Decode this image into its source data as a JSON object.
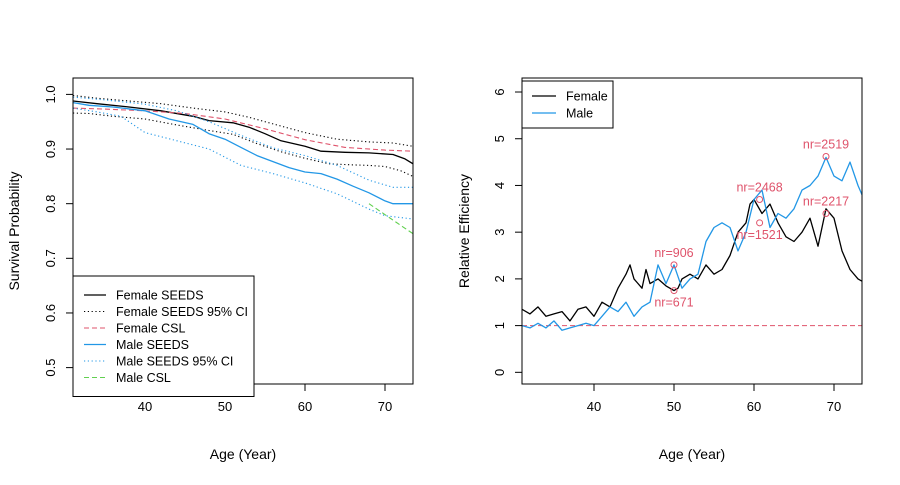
{
  "chart_data": [
    {
      "type": "line",
      "title": "",
      "xlabel": "Age (Year)",
      "ylabel": "Survival Probability",
      "xlim": [
        31,
        73.5
      ],
      "ylim": [
        0.47,
        1.03
      ],
      "xticks": [
        "40",
        "50",
        "60",
        "70"
      ],
      "yticks": [
        "0.5",
        "0.6",
        "0.7",
        "0.8",
        "0.9",
        "1.0"
      ],
      "grid": false,
      "legend_position": "bottom-left",
      "series": [
        {
          "name": "Female SEEDS",
          "color": "#000000",
          "style": "solid",
          "x": [
            31,
            34,
            38,
            42,
            46,
            48,
            51,
            53,
            55,
            57,
            60,
            62,
            65,
            68,
            71,
            72.5,
            73.5
          ],
          "y": [
            0.988,
            0.983,
            0.977,
            0.97,
            0.96,
            0.952,
            0.948,
            0.94,
            0.928,
            0.915,
            0.905,
            0.896,
            0.894,
            0.893,
            0.89,
            0.882,
            0.873
          ]
        },
        {
          "name": "Female SEEDS 95% CI",
          "color": "#000000",
          "style": "dotted",
          "x": [
            31,
            34,
            38,
            42,
            46,
            50,
            53,
            56,
            60,
            64,
            68,
            71,
            73.5
          ],
          "y": [
            0.998,
            0.993,
            0.988,
            0.983,
            0.975,
            0.968,
            0.958,
            0.946,
            0.93,
            0.918,
            0.913,
            0.911,
            0.905
          ]
        },
        {
          "name": "",
          "color": "#000000",
          "style": "dotted",
          "x": [
            31,
            33,
            36,
            40,
            44,
            48,
            51,
            54,
            57,
            60,
            63,
            66,
            68,
            70,
            72,
            73.5
          ],
          "y": [
            0.966,
            0.965,
            0.96,
            0.955,
            0.944,
            0.934,
            0.927,
            0.91,
            0.895,
            0.883,
            0.873,
            0.871,
            0.87,
            0.868,
            0.86,
            0.85
          ]
        },
        {
          "name": "Female CSL",
          "color": "#DF536B",
          "style": "dashed",
          "x": [
            31,
            35,
            40,
            45,
            50,
            55,
            60,
            65,
            70,
            73.5
          ],
          "y": [
            0.975,
            0.973,
            0.97,
            0.965,
            0.955,
            0.937,
            0.917,
            0.903,
            0.898,
            0.896
          ]
        },
        {
          "name": "Male SEEDS",
          "color": "#2297E6",
          "style": "solid",
          "x": [
            31,
            33,
            36,
            40,
            43,
            46,
            48,
            50,
            52,
            54,
            56,
            58,
            60,
            62,
            64,
            66,
            68,
            70,
            71,
            73.5
          ],
          "y": [
            0.985,
            0.98,
            0.977,
            0.97,
            0.955,
            0.945,
            0.928,
            0.918,
            0.903,
            0.888,
            0.877,
            0.866,
            0.858,
            0.855,
            0.845,
            0.832,
            0.82,
            0.805,
            0.8,
            0.8
          ]
        },
        {
          "name": "Male SEEDS 95% CI",
          "color": "#2297E6",
          "style": "dotted",
          "x": [
            31,
            35,
            40,
            44,
            48,
            52,
            56,
            60,
            64,
            68,
            71,
            73.5
          ],
          "y": [
            0.995,
            0.99,
            0.982,
            0.97,
            0.95,
            0.925,
            0.902,
            0.888,
            0.87,
            0.843,
            0.83,
            0.83
          ]
        },
        {
          "name": "",
          "color": "#2297E6",
          "style": "dotted",
          "x": [
            31,
            34,
            37,
            40,
            44,
            48,
            52,
            56,
            60,
            64,
            68,
            70,
            73.5
          ],
          "y": [
            0.975,
            0.968,
            0.96,
            0.93,
            0.915,
            0.9,
            0.87,
            0.855,
            0.838,
            0.818,
            0.79,
            0.778,
            0.772
          ]
        },
        {
          "name": "Male CSL",
          "color": "#61D04F",
          "style": "dashed",
          "x": [
            68,
            69.5,
            71,
            72.5,
            73.5
          ],
          "y": [
            0.8,
            0.785,
            0.77,
            0.755,
            0.745
          ]
        }
      ],
      "legend": [
        {
          "label": "Female SEEDS",
          "color": "#000000",
          "style": "solid"
        },
        {
          "label": "Female SEEDS 95% CI",
          "color": "#000000",
          "style": "dotted"
        },
        {
          "label": "Female CSL",
          "color": "#DF536B",
          "style": "dashed"
        },
        {
          "label": "Male SEEDS",
          "color": "#2297E6",
          "style": "solid"
        },
        {
          "label": "Male SEEDS 95% CI",
          "color": "#2297E6",
          "style": "dotted"
        },
        {
          "label": "Male CSL",
          "color": "#61D04F",
          "style": "dashed"
        }
      ]
    },
    {
      "type": "line",
      "title": "",
      "xlabel": "Age (Year)",
      "ylabel": "Relative Efficiency",
      "xlim": [
        31,
        73.5
      ],
      "ylim": [
        -0.25,
        6.3
      ],
      "xticks": [
        "40",
        "50",
        "60",
        "70"
      ],
      "yticks": [
        "0",
        "1",
        "2",
        "3",
        "4",
        "5",
        "6"
      ],
      "grid": false,
      "legend_position": "top-left",
      "reference_line": {
        "y": 1,
        "color": "#DF536B",
        "style": "dashed"
      },
      "series": [
        {
          "name": "Female",
          "color": "#000000",
          "style": "solid",
          "x": [
            31,
            32,
            33,
            34,
            35,
            36,
            37,
            38,
            39,
            40,
            41,
            42,
            43,
            44,
            44.5,
            45,
            46,
            46.5,
            47,
            48,
            49,
            50,
            50.5,
            51,
            52,
            53,
            54,
            55,
            56,
            57,
            58,
            59,
            59.5,
            60,
            61,
            62,
            63,
            64,
            65,
            66,
            67,
            68,
            69,
            70,
            71,
            72,
            73,
            73.5
          ],
          "y": [
            1.35,
            1.25,
            1.4,
            1.2,
            1.25,
            1.3,
            1.1,
            1.35,
            1.4,
            1.2,
            1.5,
            1.4,
            1.8,
            2.1,
            2.3,
            2.0,
            1.8,
            2.2,
            1.9,
            2.0,
            1.85,
            1.75,
            1.8,
            2.0,
            2.1,
            2.0,
            2.3,
            2.1,
            2.2,
            2.5,
            3.0,
            3.2,
            3.6,
            3.7,
            3.4,
            3.6,
            3.2,
            2.9,
            2.8,
            3.0,
            3.3,
            2.7,
            3.5,
            3.3,
            2.6,
            2.2,
            2.0,
            1.95
          ]
        },
        {
          "name": "Male",
          "color": "#2297E6",
          "style": "solid",
          "x": [
            31,
            32,
            33,
            34,
            35,
            36,
            37,
            38,
            39,
            40,
            41,
            42,
            43,
            44,
            45,
            46,
            47,
            48,
            49,
            50,
            51,
            52,
            53,
            54,
            55,
            56,
            57,
            58,
            59,
            60,
            61,
            62,
            63,
            64,
            65,
            66,
            67,
            68,
            69,
            70,
            71,
            72,
            73,
            73.5
          ],
          "y": [
            1.0,
            0.95,
            1.05,
            0.95,
            1.1,
            0.9,
            0.95,
            1.0,
            1.05,
            1.0,
            1.2,
            1.4,
            1.3,
            1.5,
            1.2,
            1.4,
            1.5,
            2.3,
            1.9,
            2.3,
            1.8,
            2.0,
            2.1,
            2.8,
            3.1,
            3.2,
            3.1,
            2.6,
            3.0,
            3.7,
            3.9,
            3.1,
            3.4,
            3.3,
            3.5,
            3.9,
            4.0,
            4.2,
            4.6,
            4.2,
            4.1,
            4.5,
            4.0,
            3.8
          ]
        }
      ],
      "legend": [
        {
          "label": "Female",
          "color": "#000000",
          "style": "solid"
        },
        {
          "label": "Male",
          "color": "#2297E6",
          "style": "solid"
        }
      ],
      "annotations": [
        {
          "text": "nr=906",
          "x": 50,
          "y": 2.3,
          "label_pos": "above",
          "color": "#DF536B"
        },
        {
          "text": "nr=671",
          "x": 50,
          "y": 1.75,
          "label_pos": "below",
          "color": "#DF536B"
        },
        {
          "text": "nr=2468",
          "x": 60.7,
          "y": 3.7,
          "label_pos": "above",
          "color": "#DF536B"
        },
        {
          "text": "nr=1521",
          "x": 60.7,
          "y": 3.2,
          "label_pos": "below",
          "color": "#DF536B"
        },
        {
          "text": "nr=2519",
          "x": 69,
          "y": 4.62,
          "label_pos": "above",
          "color": "#DF536B"
        },
        {
          "text": "nr=2217",
          "x": 69,
          "y": 3.4,
          "label_pos": "above",
          "color": "#DF536B"
        }
      ]
    }
  ]
}
